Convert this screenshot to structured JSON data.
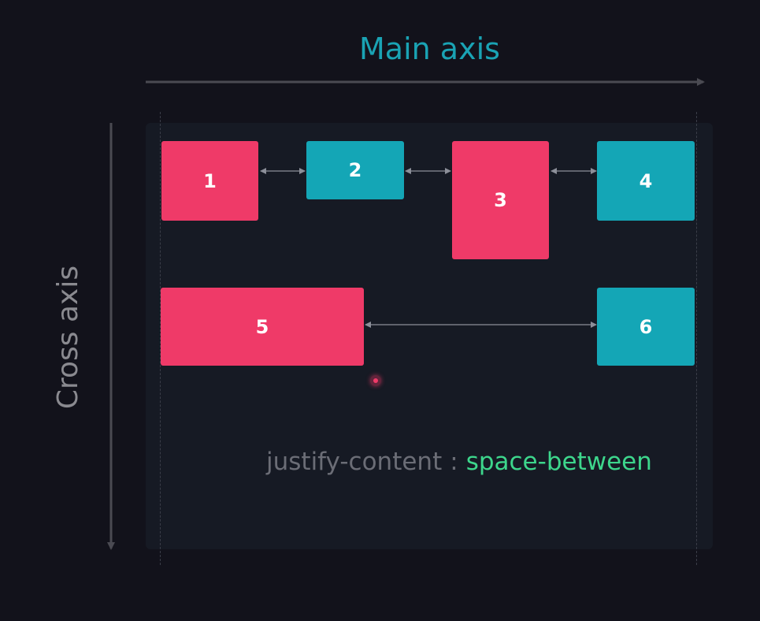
{
  "titles": {
    "main_axis": "Main axis",
    "cross_axis": "Cross axis"
  },
  "items": [
    {
      "label": "1",
      "color": "pink"
    },
    {
      "label": "2",
      "color": "teal"
    },
    {
      "label": "3",
      "color": "pink"
    },
    {
      "label": "4",
      "color": "teal"
    },
    {
      "label": "5",
      "color": "pink"
    },
    {
      "label": "6",
      "color": "teal"
    }
  ],
  "caption": {
    "property": "justify-content",
    "separator": ":",
    "value": "space-between"
  },
  "colors": {
    "pink": "#ef3a68",
    "teal": "#14a6b6",
    "main_axis_title": "#1aa3b4",
    "value_green": "#3dd68c",
    "background": "#12121b",
    "container": "#161a24"
  }
}
